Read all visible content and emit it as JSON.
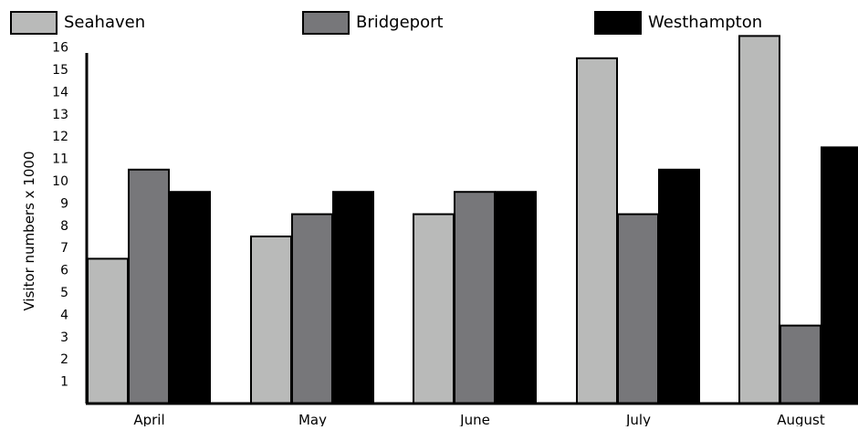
{
  "chart_data": {
    "type": "bar",
    "title": "",
    "xlabel": "",
    "ylabel": "Visitor numbers x 1000",
    "ylim": [
      0,
      16.6
    ],
    "yticks": [
      1,
      2,
      3,
      4,
      5,
      6,
      7,
      8,
      9,
      10,
      11,
      12,
      13,
      14,
      15,
      16
    ],
    "categories": [
      "April",
      "May",
      "June",
      "July",
      "August"
    ],
    "series": [
      {
        "name": "Seahaven",
        "color": "#b9bab9",
        "values": [
          6.5,
          7.5,
          8.5,
          15.5,
          16.5
        ]
      },
      {
        "name": "Bridgeport",
        "color": "#77777a",
        "values": [
          10.5,
          8.5,
          9.5,
          8.5,
          3.5
        ]
      },
      {
        "name": "Westhampton",
        "color": "#000000",
        "values": [
          9.5,
          9.5,
          9.5,
          10.5,
          11.5
        ]
      }
    ],
    "legend_position": "top",
    "grid": false
  }
}
